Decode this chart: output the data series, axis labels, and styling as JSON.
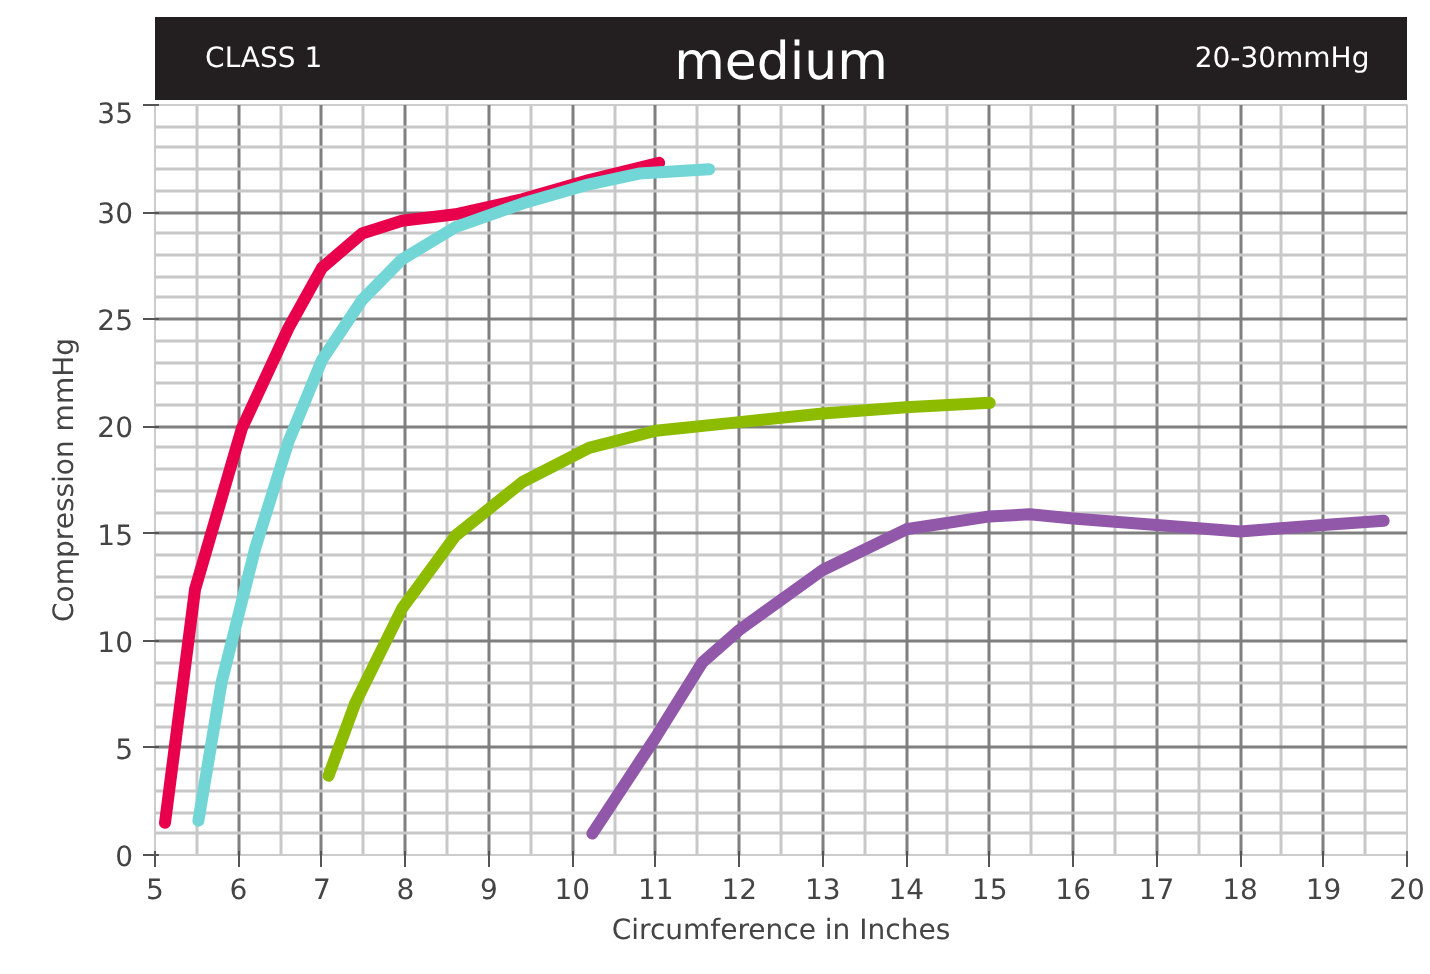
{
  "chart_data": {
    "type": "line",
    "title": "medium",
    "annotations": [
      "CLASS 1",
      "20-30mmHg"
    ],
    "xlabel": "Circumference in Inches",
    "ylabel": "Compression mmHg",
    "xlim": [
      5,
      20
    ],
    "ylim": [
      0,
      35
    ],
    "xticks": [
      5,
      6,
      7,
      8,
      9,
      10,
      11,
      12,
      13,
      14,
      15,
      16,
      17,
      18,
      19,
      20
    ],
    "yticks": [
      0,
      5,
      10,
      15,
      20,
      25,
      30,
      35
    ],
    "grid": true,
    "marker": "none",
    "line_style": "solid",
    "series": [
      {
        "color": "#e8004c",
        "x": [
          5.12,
          5.48,
          6.04,
          6.6,
          7.0,
          7.48,
          7.96,
          8.6,
          9.4,
          10.2,
          11.04
        ],
        "values": [
          1.5,
          12.4,
          19.9,
          24.6,
          27.4,
          29.0,
          29.6,
          29.9,
          30.6,
          31.5,
          32.3
        ]
      },
      {
        "color": "#72d6d6",
        "x": [
          5.52,
          5.8,
          6.2,
          6.6,
          7.0,
          7.48,
          7.96,
          8.6,
          9.4,
          10.2,
          10.8,
          11.64
        ],
        "values": [
          1.6,
          8.1,
          14.3,
          19.3,
          23.1,
          25.9,
          27.8,
          29.3,
          30.4,
          31.3,
          31.8,
          32.0
        ]
      },
      {
        "color": "#8cbb00",
        "x": [
          7.08,
          7.4,
          7.96,
          8.6,
          9.4,
          10.2,
          11,
          12,
          13,
          14,
          15
        ],
        "values": [
          3.7,
          7.1,
          11.5,
          14.9,
          17.4,
          19.0,
          19.8,
          20.2,
          20.6,
          20.9,
          21.1
        ]
      },
      {
        "color": "#9157a8",
        "x": [
          10.24,
          11,
          11.56,
          12,
          13,
          14,
          15,
          15.48,
          16,
          17,
          18,
          19,
          19.72
        ],
        "values": [
          1.0,
          5.5,
          9.0,
          10.5,
          13.3,
          15.2,
          15.8,
          15.9,
          15.7,
          15.4,
          15.1,
          15.4,
          15.6
        ]
      }
    ]
  }
}
